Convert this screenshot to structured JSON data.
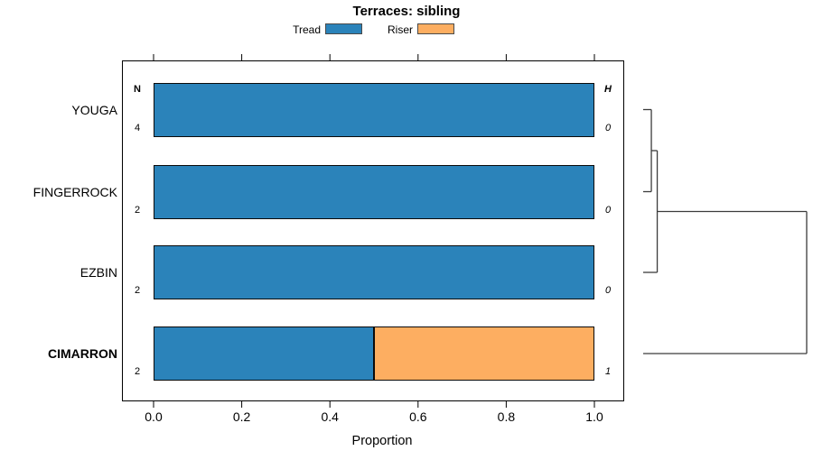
{
  "chart_data": {
    "type": "bar",
    "orientation": "horizontal",
    "stacked": true,
    "title": "Terraces: sibling",
    "xlabel": "Proportion",
    "xlim": [
      0,
      1
    ],
    "x_ticks": [
      "0.0",
      "0.2",
      "0.4",
      "0.6",
      "0.8",
      "1.0"
    ],
    "grid": false,
    "categories": [
      "YOUGA",
      "FINGERROCK",
      "EZBIN",
      "CIMARRON"
    ],
    "highlighted_category": "CIMARRON",
    "series": [
      {
        "name": "Tread",
        "color": "#2B83BA",
        "values": [
          1.0,
          1.0,
          1.0,
          0.5
        ]
      },
      {
        "name": "Riser",
        "color": "#FDAE61",
        "values": [
          0.0,
          0.0,
          0.0,
          0.5
        ]
      }
    ],
    "legend": {
      "position": "top",
      "entries": [
        {
          "label": "Tread",
          "color": "#2B83BA"
        },
        {
          "label": "Riser",
          "color": "#FDAE61"
        }
      ]
    },
    "annotations": {
      "left_header": "N",
      "left_values": [
        "4",
        "2",
        "2",
        "2"
      ],
      "right_header": "H",
      "right_values": [
        "0",
        "0",
        "0",
        "1"
      ]
    },
    "dendrogram": {
      "merges": [
        {
          "id": "n1",
          "a": "YOUGA",
          "b": "FINGERROCK",
          "height": 0.05
        },
        {
          "id": "n2",
          "a": "n1",
          "b": "EZBIN",
          "height": 0.086
        },
        {
          "id": "n3",
          "a": "n2",
          "b": "CIMARRON",
          "height": 1.0
        }
      ]
    },
    "colors": {
      "bar_border": "#0a0a0a",
      "frame": "#000000",
      "dendrogram_line": "#3c3c3c",
      "tick": "#000000"
    }
  }
}
